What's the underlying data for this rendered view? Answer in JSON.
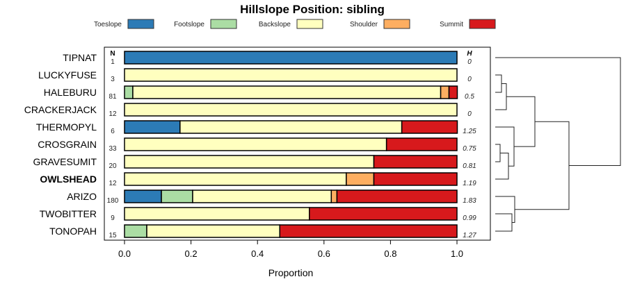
{
  "chart_data": {
    "type": "bar",
    "stacked": true,
    "orientation": "horizontal",
    "title": "Hillslope Position: sibling",
    "xlabel": "Proportion",
    "xlim": [
      0,
      1
    ],
    "xticks": [
      "0.0",
      "0.2",
      "0.4",
      "0.6",
      "0.8",
      "1.0"
    ],
    "n_header": "N",
    "h_header": "H",
    "legend_position": "top",
    "series": [
      {
        "name": "Toeslope",
        "color": "#2c7bb6"
      },
      {
        "name": "Footslope",
        "color": "#abdda4"
      },
      {
        "name": "Backslope",
        "color": "#ffffbf"
      },
      {
        "name": "Shoulder",
        "color": "#fdae61"
      },
      {
        "name": "Summit",
        "color": "#d7191c"
      }
    ],
    "rows": [
      {
        "label": "TIPNAT",
        "bold": false,
        "n": "1",
        "h": "0",
        "values": [
          1,
          0,
          0,
          0,
          0
        ]
      },
      {
        "label": "LUCKYFUSE",
        "bold": false,
        "n": "3",
        "h": "0",
        "values": [
          0,
          0,
          1,
          0,
          0
        ]
      },
      {
        "label": "HALEBURU",
        "bold": false,
        "n": "81",
        "h": "0.5",
        "values": [
          0,
          0.025,
          0.926,
          0.025,
          0.025
        ]
      },
      {
        "label": "CRACKERJACK",
        "bold": false,
        "n": "12",
        "h": "0",
        "values": [
          0,
          0,
          1,
          0,
          0
        ]
      },
      {
        "label": "THERMOPYL",
        "bold": false,
        "n": "6",
        "h": "1.25",
        "values": [
          0.167,
          0,
          0.667,
          0,
          0.167
        ]
      },
      {
        "label": "CROSGRAIN",
        "bold": false,
        "n": "33",
        "h": "0.75",
        "values": [
          0,
          0,
          0.788,
          0,
          0.212
        ]
      },
      {
        "label": "GRAVESUMIT",
        "bold": false,
        "n": "20",
        "h": "0.81",
        "values": [
          0,
          0,
          0.75,
          0,
          0.25
        ]
      },
      {
        "label": "OWLSHEAD",
        "bold": true,
        "n": "12",
        "h": "1.19",
        "values": [
          0,
          0,
          0.667,
          0.083,
          0.25
        ]
      },
      {
        "label": "ARIZO",
        "bold": false,
        "n": "180",
        "h": "1.83",
        "values": [
          0.111,
          0.094,
          0.417,
          0.017,
          0.361
        ]
      },
      {
        "label": "TWOBITTER",
        "bold": false,
        "n": "9",
        "h": "0.99",
        "values": [
          0,
          0,
          0.556,
          0,
          0.444
        ]
      },
      {
        "label": "TONOPAH",
        "bold": false,
        "n": "15",
        "h": "1.27",
        "values": [
          0,
          0.067,
          0.4,
          0,
          0.533
        ]
      }
    ],
    "dendrogram": {
      "merges": [
        {
          "a": 1,
          "b": 2,
          "height": 9
        },
        {
          "a": "m0",
          "b": 3,
          "height": 16
        },
        {
          "a": 5,
          "b": 6,
          "height": 7
        },
        {
          "a": "m2",
          "b": 7,
          "height": 19
        },
        {
          "a": 4,
          "b": "m3",
          "height": 27
        },
        {
          "a": "m1",
          "b": "m4",
          "height": 57
        },
        {
          "a": 9,
          "b": 10,
          "height": 24
        },
        {
          "a": 8,
          "b": "m6",
          "height": 28
        },
        {
          "a": "m5",
          "b": "m7",
          "height": 106
        },
        {
          "a": 0,
          "b": "m8",
          "height": 180
        }
      ]
    }
  }
}
